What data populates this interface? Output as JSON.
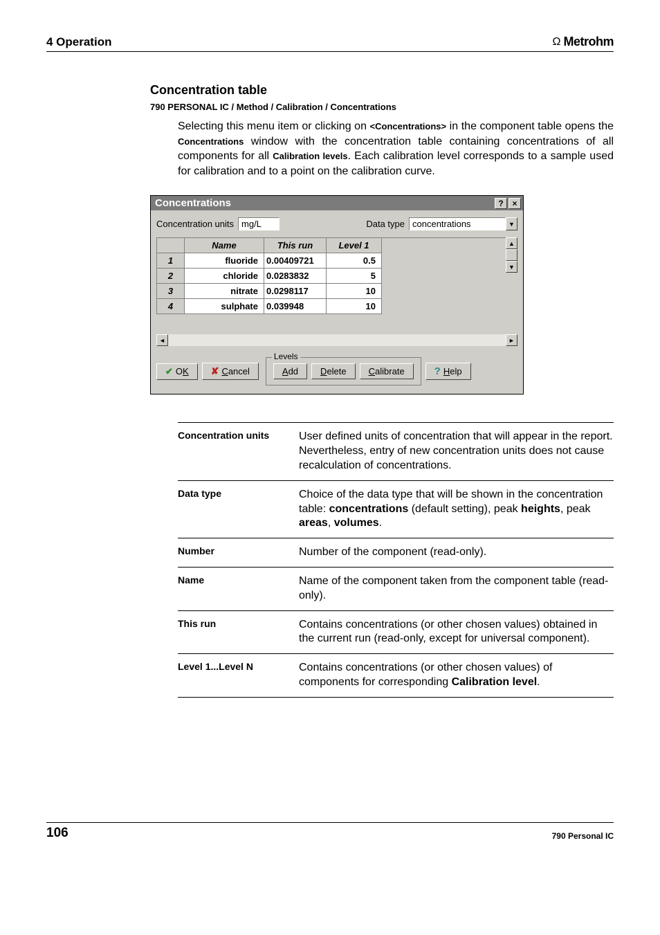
{
  "header": {
    "chapter": "4 Operation",
    "brand": "Metrohm"
  },
  "section": {
    "title": "Concentration table",
    "breadcrumb": "790 PERSONAL IC / Method / Calibration / Concentrations",
    "intro_pre": "Selecting this menu item or clicking on ",
    "intro_tag": "<Concentrations>",
    "intro_mid1": " in the component table opens the ",
    "intro_bold1": "Concentrations",
    "intro_mid2": " window with the concentration table containing concentrations of all components for all ",
    "intro_bold2": "Calibration levels",
    "intro_end": ". Each calibration level corresponds to a sample used for calibration and to a point on the calibration curve."
  },
  "dialog": {
    "title": "Concentrations",
    "conc_units_label": "Concentration units",
    "conc_units_value": "mg/L",
    "data_type_label": "Data type",
    "data_type_value": "concentrations",
    "columns": {
      "name": "Name",
      "thisrun": "This run",
      "level1": "Level 1"
    },
    "rows": [
      {
        "n": "1",
        "name": "fluoride",
        "run": "0.00409721",
        "lvl": "0.5"
      },
      {
        "n": "2",
        "name": "chloride",
        "run": "0.0283832",
        "lvl": "5"
      },
      {
        "n": "3",
        "name": "nitrate",
        "run": "0.0298117",
        "lvl": "10"
      },
      {
        "n": "4",
        "name": "sulphate",
        "run": "0.039948",
        "lvl": "10"
      }
    ],
    "levels_label": "Levels",
    "btn_ok": "K",
    "btn_ok_pre": "O",
    "btn_cancel": "ancel",
    "btn_cancel_pre": "C",
    "btn_add": "dd",
    "btn_add_pre": "A",
    "btn_delete": "elete",
    "btn_delete_pre": "D",
    "btn_calibrate": "alibrate",
    "btn_calibrate_pre": "C",
    "btn_help": "elp",
    "btn_help_pre": "H"
  },
  "definitions": [
    {
      "term": "Concentration units",
      "desc": "User defined units of concentration that will appear in the report. Nevertheless, entry of new concentration units does not cause recalculation of concentrations."
    },
    {
      "term": "Data type",
      "desc_parts": [
        {
          "t": "Choice of the data type that will be shown in the concentration table: "
        },
        {
          "b": "concentrations"
        },
        {
          "t": " (default setting), peak "
        },
        {
          "b": "heights"
        },
        {
          "t": ", peak "
        },
        {
          "b": "areas"
        },
        {
          "t": ", "
        },
        {
          "b": "volumes"
        },
        {
          "t": "."
        }
      ]
    },
    {
      "term": "Number",
      "desc": "Number of the component (read-only)."
    },
    {
      "term": "Name",
      "desc": "Name of the component taken from the component table (read-only)."
    },
    {
      "term": "This run",
      "desc": "Contains concentrations (or other chosen values) obtained in the current run (read-only, except for universal component)."
    },
    {
      "term": "Level 1...Level N",
      "desc_parts": [
        {
          "t": "Contains concentrations (or other chosen values) of components for corresponding "
        },
        {
          "b": "Calibration level"
        },
        {
          "t": "."
        }
      ]
    }
  ],
  "footer": {
    "page": "106",
    "doc": "790 Personal IC"
  }
}
